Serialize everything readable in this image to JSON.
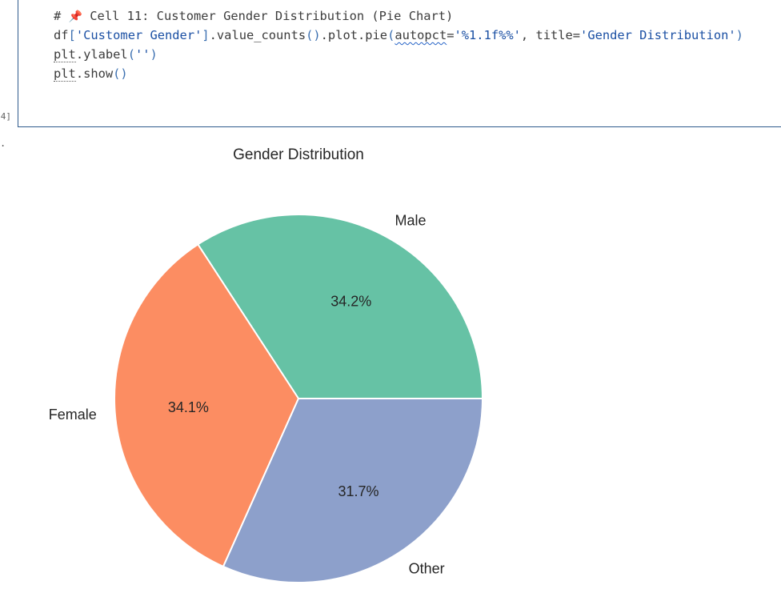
{
  "cell": {
    "execution_count": "4]",
    "output_marker": ".",
    "code": {
      "line1": {
        "hash": "#",
        "pin": "📌",
        "comment": "Cell 11: Customer Gender Distribution (Pie Chart)"
      },
      "line2": {
        "p1": "df",
        "p2": "[",
        "p3": "'Customer Gender'",
        "p4": "]",
        "p5": ".value_counts",
        "p6": "()",
        "p7": ".plot.pie",
        "p8": "(",
        "p9": "autopct",
        "p10": "=",
        "p11": "'%1.1f%%'",
        "p12": ", title=",
        "p13": "'Gender Distribution'",
        "p14": ")"
      },
      "line3": {
        "p1": "plt",
        "p2": ".ylabel",
        "p3": "(",
        "p4": "''",
        "p5": ")"
      },
      "line4": {
        "p1": "plt",
        "p2": ".show",
        "p3": "()"
      }
    }
  },
  "chart_data": {
    "type": "pie",
    "title": "Gender Distribution",
    "labels": [
      "Male",
      "Female",
      "Other"
    ],
    "values": [
      34.2,
      34.1,
      31.7
    ],
    "pct_labels": [
      "34.2%",
      "34.1%",
      "31.7%"
    ],
    "colors": [
      "#66c2a5",
      "#fc8d62",
      "#8da0cb"
    ],
    "start_angle_deg": 0,
    "direction": "counterclockwise",
    "ylabel": ""
  }
}
